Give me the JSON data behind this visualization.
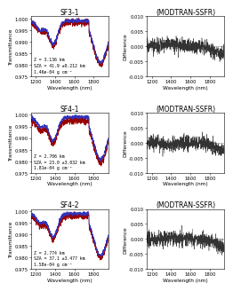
{
  "panels": [
    {
      "title": "SF3-1",
      "annotation": "Z = 3.136 km\nSZA = 41.9 ±0.212 km\n1.46e-04 g cm⁻²",
      "ylim": [
        0.975,
        1.001
      ],
      "yticks": [
        0.975,
        0.98,
        0.985,
        0.99,
        0.995,
        1.0
      ],
      "diff_ylim": [
        -0.01,
        0.01
      ],
      "diff_yticks": [
        -0.01,
        -0.005,
        0.0,
        0.005,
        0.01
      ]
    },
    {
      "title": "SF4-1",
      "annotation": "Z = 2.706 km\nSZA = 23.0 ±3.032 km\n1.81e-04 g cm⁻²",
      "ylim": [
        0.975,
        1.001
      ],
      "yticks": [
        0.975,
        0.98,
        0.985,
        0.99,
        0.995,
        1.0
      ],
      "diff_ylim": [
        -0.01,
        0.01
      ],
      "diff_yticks": [
        -0.01,
        -0.005,
        0.0,
        0.005,
        0.01
      ]
    },
    {
      "title": "SF4-2",
      "annotation": "Z = 2.774 km\nSZA = 37.1 ±3.477 km\n1.58e-04 g cm⁻²",
      "ylim": [
        0.975,
        1.001
      ],
      "yticks": [
        0.975,
        0.98,
        0.985,
        0.99,
        0.995,
        1.0
      ],
      "diff_ylim": [
        -0.01,
        0.01
      ],
      "diff_yticks": [
        -0.01,
        -0.005,
        0.0,
        0.005,
        0.01
      ]
    }
  ],
  "xlim": [
    1150,
    1950
  ],
  "xticks": [
    1200,
    1400,
    1600,
    1800
  ],
  "xlabel": "Wavelength (nm)",
  "diff_title": "(MODTRAN-SSFR)",
  "ylabel_trans": "Transmittance",
  "ylabel_diff": "Difference",
  "line_color_modtran": "#3333bb",
  "line_color_ssfr": "#990000",
  "line_color_diff": "#333333",
  "bg_color": "#ffffff",
  "title_fontsize": 5.5,
  "label_fontsize": 4.2,
  "tick_fontsize": 3.8,
  "annot_fontsize": 3.5
}
